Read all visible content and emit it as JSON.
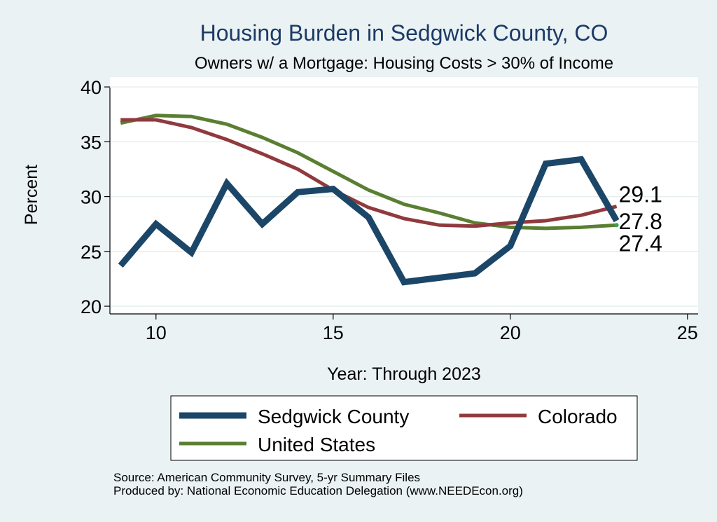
{
  "chart_data": {
    "type": "line",
    "title": "Housing Burden in Sedgwick County, CO",
    "subtitle": "Owners w/ a Mortgage: Housing Costs > 30% of Income",
    "xlabel": "Year: Through 2023",
    "ylabel": "Percent",
    "xlim": [
      8.7,
      25.3
    ],
    "ylim": [
      19.3,
      40.9
    ],
    "xticks": [
      10,
      15,
      20,
      25
    ],
    "yticks": [
      20,
      25,
      30,
      35,
      40
    ],
    "grid": true,
    "legend_position": "bottom",
    "x": [
      9,
      10,
      11,
      12,
      13,
      14,
      15,
      16,
      17,
      18,
      19,
      20,
      21,
      22,
      23
    ],
    "series": [
      {
        "name": "Sedgwick County",
        "color": "#1b4668",
        "values": [
          23.7,
          27.5,
          24.9,
          31.2,
          27.5,
          30.4,
          30.7,
          28.1,
          22.2,
          22.6,
          23.0,
          25.5,
          33.0,
          33.4,
          27.8
        ]
      },
      {
        "name": "Colorado",
        "color": "#903a3e",
        "values": [
          37.0,
          37.0,
          36.3,
          35.2,
          33.9,
          32.5,
          30.6,
          29.0,
          28.0,
          27.4,
          27.3,
          27.6,
          27.8,
          28.3,
          29.1
        ]
      },
      {
        "name": "United States",
        "color": "#5a7f32",
        "values": [
          36.7,
          37.4,
          37.3,
          36.6,
          35.4,
          34.0,
          32.3,
          30.6,
          29.3,
          28.5,
          27.6,
          27.2,
          27.1,
          27.2,
          27.4
        ]
      }
    ],
    "end_labels": [
      "29.1",
      "27.8",
      "27.4"
    ]
  },
  "source_note": "Source: American Community Survey, 5-yr Summary Files",
  "produced_note": "Produced by: National Economic Education Delegation (www.NEEDEcon.org)"
}
